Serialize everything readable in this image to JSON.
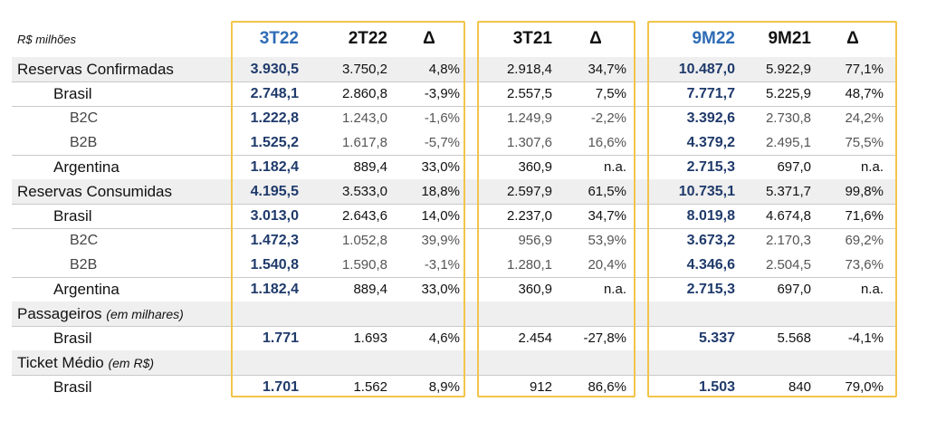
{
  "header": {
    "unit_label": "R$ milhões",
    "col_3T22": "3T22",
    "col_2T22": "2T22",
    "col_delta1": "Δ",
    "col_3T21": "3T21",
    "col_delta2": "Δ",
    "col_9M22": "9M22",
    "col_9M21": "9M21",
    "col_delta3": "Δ"
  },
  "rows": [
    {
      "label": "Reservas Confirmadas",
      "sub": "",
      "level": 0,
      "values": [
        "3.930,5",
        "3.750,2",
        "4,8%",
        "2.918,4",
        "34,7%",
        "10.487,0",
        "5.922,9",
        "77,1%"
      ]
    },
    {
      "label": "Brasil",
      "sub": "",
      "level": 1,
      "values": [
        "2.748,1",
        "2.860,8",
        "-3,9%",
        "2.557,5",
        "7,5%",
        "7.771,7",
        "5.225,9",
        "48,7%"
      ]
    },
    {
      "label": "B2C",
      "sub": "",
      "level": 2,
      "values": [
        "1.222,8",
        "1.243,0",
        "-1,6%",
        "1.249,9",
        "-2,2%",
        "3.392,6",
        "2.730,8",
        "24,2%"
      ]
    },
    {
      "label": "B2B",
      "sub": "",
      "level": 2,
      "values": [
        "1.525,2",
        "1.617,8",
        "-5,7%",
        "1.307,6",
        "16,6%",
        "4.379,2",
        "2.495,1",
        "75,5%"
      ]
    },
    {
      "label": "Argentina",
      "sub": "",
      "level": 1,
      "values": [
        "1.182,4",
        "889,4",
        "33,0%",
        "360,9",
        "n.a.",
        "2.715,3",
        "697,0",
        "n.a."
      ]
    },
    {
      "label": "Reservas Consumidas",
      "sub": "",
      "level": 0,
      "values": [
        "4.195,5",
        "3.533,0",
        "18,8%",
        "2.597,9",
        "61,5%",
        "10.735,1",
        "5.371,7",
        "99,8%"
      ]
    },
    {
      "label": "Brasil",
      "sub": "",
      "level": 1,
      "values": [
        "3.013,0",
        "2.643,6",
        "14,0%",
        "2.237,0",
        "34,7%",
        "8.019,8",
        "4.674,8",
        "71,6%"
      ]
    },
    {
      "label": "B2C",
      "sub": "",
      "level": 2,
      "values": [
        "1.472,3",
        "1.052,8",
        "39,9%",
        "956,9",
        "53,9%",
        "3.673,2",
        "2.170,3",
        "69,2%"
      ]
    },
    {
      "label": "B2B",
      "sub": "",
      "level": 2,
      "values": [
        "1.540,8",
        "1.590,8",
        "-3,1%",
        "1.280,1",
        "20,4%",
        "4.346,6",
        "2.504,5",
        "73,6%"
      ]
    },
    {
      "label": "Argentina",
      "sub": "",
      "level": 1,
      "values": [
        "1.182,4",
        "889,4",
        "33,0%",
        "360,9",
        "n.a.",
        "2.715,3",
        "697,0",
        "n.a."
      ]
    },
    {
      "label": "Passageiros ",
      "sub": "(em milhares)",
      "level": 0,
      "values": [
        "",
        "",
        "",
        "",
        "",
        "",
        "",
        ""
      ]
    },
    {
      "label": "Brasil",
      "sub": "",
      "level": 1,
      "values": [
        "1.771",
        "1.693",
        "4,6%",
        "2.454",
        "-27,8%",
        "5.337",
        "5.568",
        "-4,1%"
      ]
    },
    {
      "label": "Ticket Médio ",
      "sub": "(em R$)",
      "level": 0,
      "values": [
        "",
        "",
        "",
        "",
        "",
        "",
        "",
        ""
      ]
    },
    {
      "label": "Brasil",
      "sub": "",
      "level": 1,
      "values": [
        "1.701",
        "1.562",
        "8,9%",
        "912",
        "86,6%",
        "1.503",
        "840",
        "79,0%"
      ]
    }
  ]
}
